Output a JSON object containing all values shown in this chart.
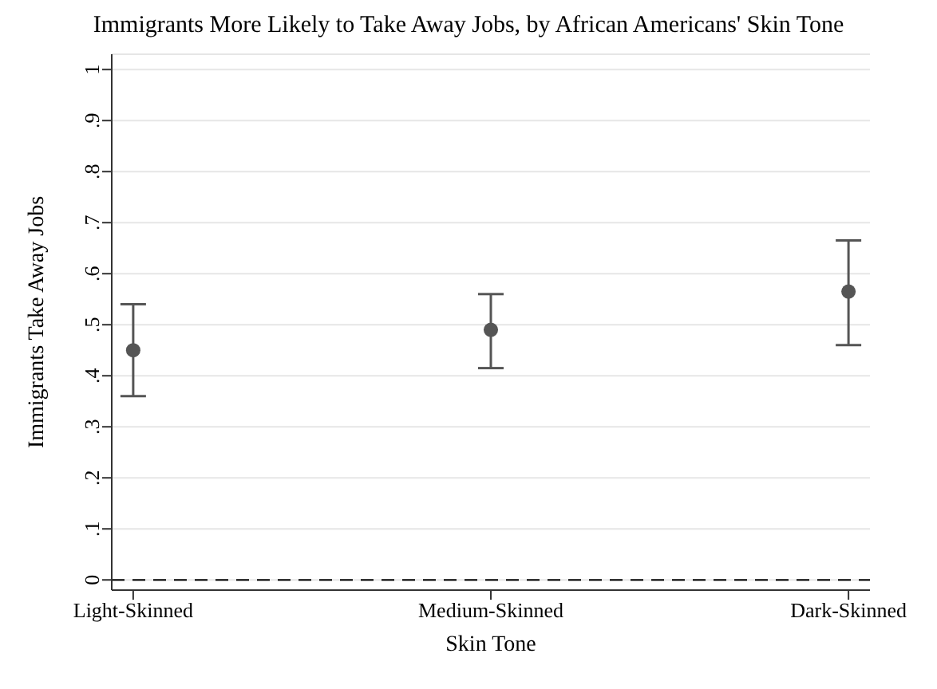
{
  "chart_data": {
    "type": "scatter",
    "title": "Immigrants More Likely to Take Away Jobs, by African Americans' Skin Tone",
    "xlabel": "Skin Tone",
    "ylabel": "Immigrants Take Away Jobs",
    "categories": [
      "Light-Skinned",
      "Medium-Skinned",
      "Dark-Skinned"
    ],
    "values": [
      0.45,
      0.49,
      0.565
    ],
    "errors": [
      [
        0.36,
        0.54
      ],
      [
        0.415,
        0.56
      ],
      [
        0.46,
        0.665
      ]
    ],
    "color": "#555555",
    "ylim": [
      -0.02,
      1.03
    ],
    "yticks": [
      {
        "value": 0,
        "label": "0"
      },
      {
        "value": 0.1,
        "label": ".1"
      },
      {
        "value": 0.2,
        "label": ".2"
      },
      {
        "value": 0.3,
        "label": ".3"
      },
      {
        "value": 0.4,
        "label": ".4"
      },
      {
        "value": 0.5,
        "label": ".5"
      },
      {
        "value": 0.6,
        "label": ".6"
      },
      {
        "value": 0.7,
        "label": ".7"
      },
      {
        "value": 0.8,
        "label": ".8"
      },
      {
        "value": 0.9,
        "label": ".9"
      },
      {
        "value": 1,
        "label": "1"
      }
    ],
    "grid": "y",
    "marker": "circle",
    "ref_lines": [
      {
        "axis": "y",
        "value": 0,
        "label": null,
        "color": "#000000",
        "line_style": "dashed"
      }
    ]
  }
}
